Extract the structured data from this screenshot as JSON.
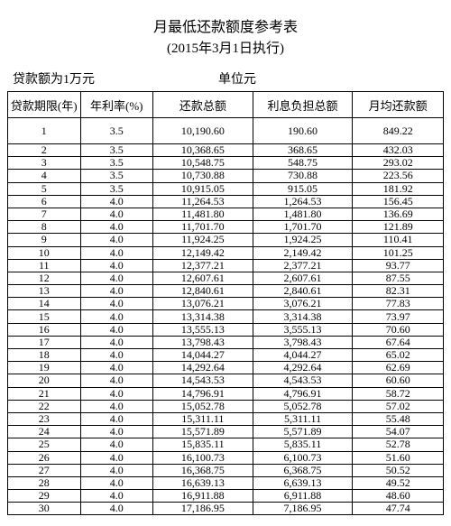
{
  "title": "月最低还款额度参考表",
  "subtitle": "(2015年3月1日执行)",
  "meta_left": "贷款额为1万元",
  "meta_right": "单位元",
  "columns": [
    "贷款期限(年)",
    "年利率(%)",
    "还款总额",
    "利息负担总额",
    "月均还款额"
  ],
  "rows": [
    [
      "1",
      "3.5",
      "10,190.60",
      "190.60",
      "849.22"
    ],
    [
      "2",
      "3.5",
      "10,368.65",
      "368.65",
      "432.03"
    ],
    [
      "3",
      "3.5",
      "10,548.75",
      "548.75",
      "293.02"
    ],
    [
      "4",
      "3.5",
      "10,730.88",
      "730.88",
      "223.56"
    ],
    [
      "5",
      "3.5",
      "10,915.05",
      "915.05",
      "181.92"
    ],
    [
      "6",
      "4.0",
      "11,264.53",
      "1,264.53",
      "156.45"
    ],
    [
      "7",
      "4.0",
      "11,481.80",
      "1,481.80",
      "136.69"
    ],
    [
      "8",
      "4.0",
      "11,701.70",
      "1,701.70",
      "121.89"
    ],
    [
      "9",
      "4.0",
      "11,924.25",
      "1,924.25",
      "110.41"
    ],
    [
      "10",
      "4.0",
      "12,149.42",
      "2,149.42",
      "101.25"
    ],
    [
      "11",
      "4.0",
      "12,377.21",
      "2,377.21",
      "93.77"
    ],
    [
      "12",
      "4.0",
      "12,607.61",
      "2,607.61",
      "87.55"
    ],
    [
      "13",
      "4.0",
      "12,840.61",
      "2,840.61",
      "82.31"
    ],
    [
      "14",
      "4.0",
      "13,076.21",
      "3,076.21",
      "77.83"
    ],
    [
      "15",
      "4.0",
      "13,314.38",
      "3,314.38",
      "73.97"
    ],
    [
      "16",
      "4.0",
      "13,555.13",
      "3,555.13",
      "70.60"
    ],
    [
      "17",
      "4.0",
      "13,798.43",
      "3,798.43",
      "67.64"
    ],
    [
      "18",
      "4.0",
      "14,044.27",
      "4,044.27",
      "65.02"
    ],
    [
      "19",
      "4.0",
      "14,292.64",
      "4,292.64",
      "62.69"
    ],
    [
      "20",
      "4.0",
      "14,543.53",
      "4,543.53",
      "60.60"
    ],
    [
      "21",
      "4.0",
      "14,796.91",
      "4,796.91",
      "58.72"
    ],
    [
      "22",
      "4.0",
      "15,052.78",
      "5,052.78",
      "57.02"
    ],
    [
      "23",
      "4.0",
      "15,311.11",
      "5,311.11",
      "55.48"
    ],
    [
      "24",
      "4.0",
      "15,571.89",
      "5,571.89",
      "54.07"
    ],
    [
      "25",
      "4.0",
      "15,835.11",
      "5,835.11",
      "52.78"
    ],
    [
      "26",
      "4.0",
      "16,100.73",
      "6,100.73",
      "51.60"
    ],
    [
      "27",
      "4.0",
      "16,368.75",
      "6,368.75",
      "50.52"
    ],
    [
      "28",
      "4.0",
      "16,639.13",
      "6,639.13",
      "49.52"
    ],
    [
      "29",
      "4.0",
      "16,911.88",
      "6,911.88",
      "48.60"
    ],
    [
      "30",
      "4.0",
      "17,186.95",
      "7,186.95",
      "47.74"
    ]
  ]
}
